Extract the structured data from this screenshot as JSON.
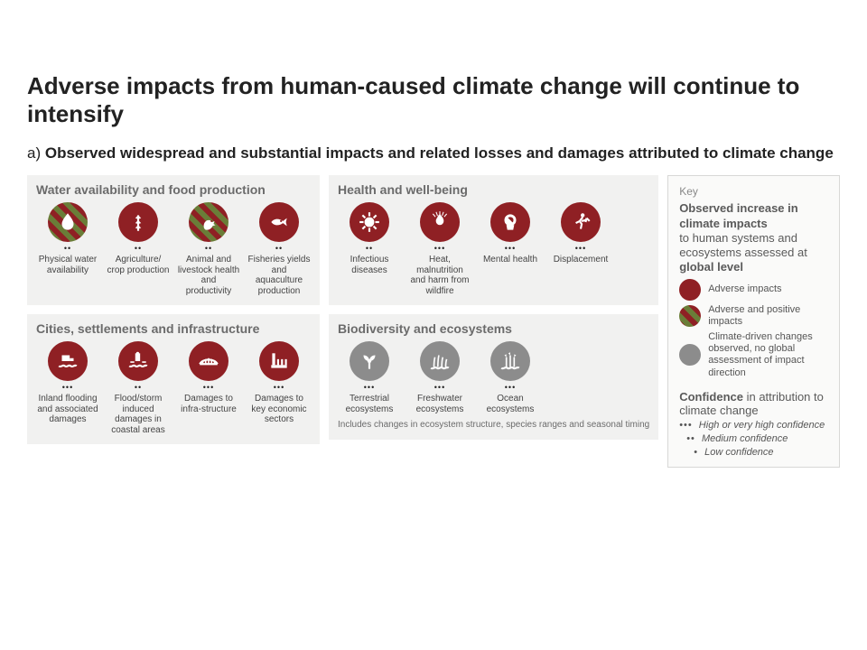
{
  "colors": {
    "adverse": "#8f2024",
    "mixed_stripe1": "#8f2024",
    "mixed_stripe2": "#6a7d38",
    "observed": "#8c8c8c",
    "panel_bg": "#f1f1f0",
    "text_muted": "#6b6b6b",
    "icon_fg": "#ffffff"
  },
  "title": "Adverse impacts from human-caused climate change will continue to intensify",
  "subtitle_prefix": "a) ",
  "subtitle": "Observed widespread and substantial impacts and related losses and damages attributed to climate change",
  "panels": {
    "water": {
      "title": "Water availability and food production",
      "items": [
        {
          "icon": "drop",
          "style": "mixed",
          "dots": 2,
          "label": "Physical water availability"
        },
        {
          "icon": "wheat",
          "style": "adverse",
          "dots": 2,
          "label": "Agriculture/ crop production"
        },
        {
          "icon": "hen",
          "style": "mixed",
          "dots": 2,
          "label": "Animal and livestock health and productivity"
        },
        {
          "icon": "fish",
          "style": "adverse",
          "dots": 2,
          "label": "Fisheries yields and aquaculture production"
        }
      ]
    },
    "health": {
      "title": "Health and well-being",
      "items": [
        {
          "icon": "virus",
          "style": "adverse",
          "dots": 2,
          "label": "Infectious diseases"
        },
        {
          "icon": "fire",
          "style": "adverse",
          "dots": 3,
          "label": "Heat, malnutrition and harm from wildfire"
        },
        {
          "icon": "brain",
          "style": "adverse",
          "dots": 3,
          "label": "Mental health"
        },
        {
          "icon": "run",
          "style": "adverse",
          "dots": 3,
          "label": "Displacement"
        }
      ]
    },
    "cities": {
      "title": "Cities, settlements and infrastructure",
      "items": [
        {
          "icon": "flood",
          "style": "adverse",
          "dots": 3,
          "label": "Inland flooding and associated damages"
        },
        {
          "icon": "storm",
          "style": "adverse",
          "dots": 2,
          "label": "Flood/storm induced damages in coastal areas"
        },
        {
          "icon": "bridge",
          "style": "adverse",
          "dots": 3,
          "label": "Damages to infra-structure"
        },
        {
          "icon": "factory",
          "style": "adverse",
          "dots": 3,
          "label": "Damages to key economic sectors"
        }
      ]
    },
    "bio": {
      "title": "Biodiversity and ecosystems",
      "note": "Includes changes in ecosystem structure, species ranges and seasonal timing",
      "items": [
        {
          "icon": "sprout",
          "style": "observed",
          "dots": 3,
          "label": "Terrestrial ecosystems"
        },
        {
          "icon": "reed",
          "style": "observed",
          "dots": 3,
          "label": "Freshwater ecosystems"
        },
        {
          "icon": "wave",
          "style": "observed",
          "dots": 3,
          "label": "Ocean ecosystems"
        }
      ]
    }
  },
  "key": {
    "label": "Key",
    "heading_line1": "Observed increase in climate impacts",
    "heading_line2_thin": "to human systems and ecosystems assessed at ",
    "heading_line2_bold": "global level",
    "impacts": [
      {
        "style": "adverse",
        "text": "Adverse impacts"
      },
      {
        "style": "mixed",
        "text": "Adverse and positive impacts"
      },
      {
        "style": "observed",
        "text": "Climate-driven changes observed, no global assessment of impact direction"
      }
    ],
    "conf_heading_bold": "Confidence",
    "conf_heading_thin": " in attribution to climate change",
    "confidence": [
      {
        "dots": "•••",
        "text": "High or very high confidence",
        "indent": 0
      },
      {
        "dots": "••",
        "text": "Medium confidence",
        "indent": 8
      },
      {
        "dots": "•",
        "text": "Low confidence",
        "indent": 16
      }
    ]
  }
}
